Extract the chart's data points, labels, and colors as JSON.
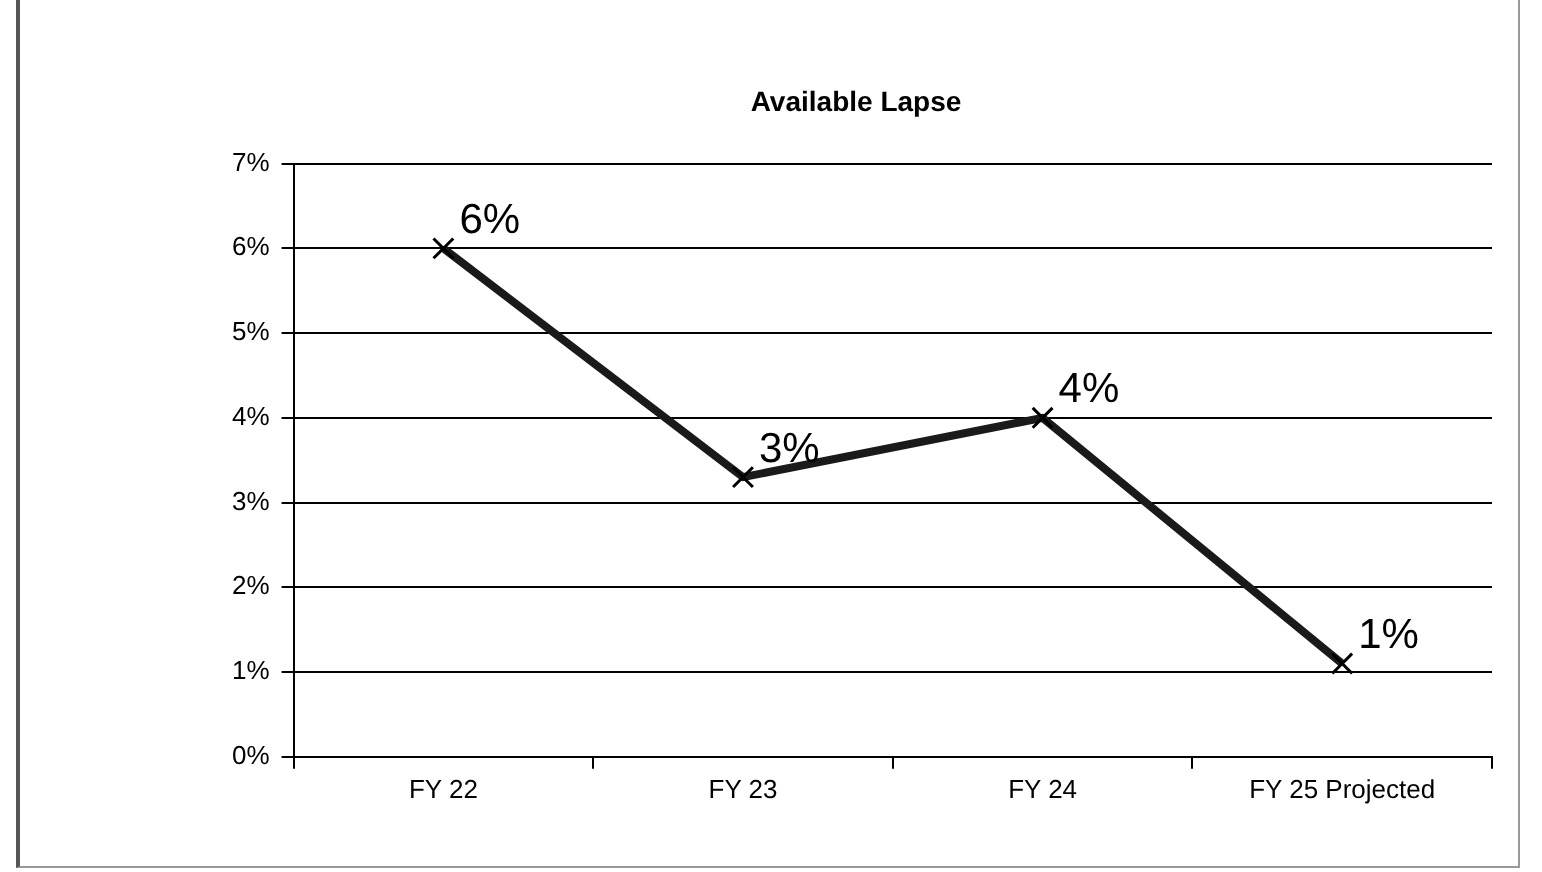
{
  "chart_data": {
    "type": "line",
    "title": "Available Lapse",
    "categories": [
      "FY 22",
      "FY 23",
      "FY 24",
      "FY 25 Projected"
    ],
    "series": [
      {
        "color": "#1a1a1a",
        "values": [
          6.0,
          3.3,
          4.0,
          1.1
        ],
        "value_labels": [
          "6%",
          "3%",
          "4%",
          "1%"
        ]
      }
    ],
    "ylim": [
      0,
      7
    ],
    "yticks": [
      {
        "value": 0,
        "label": "0%"
      },
      {
        "value": 1,
        "label": "1%"
      },
      {
        "value": 2,
        "label": "2%"
      },
      {
        "value": 3,
        "label": "3%"
      },
      {
        "value": 4,
        "label": "4%"
      },
      {
        "value": 5,
        "label": "5%"
      },
      {
        "value": 6,
        "label": "6%"
      },
      {
        "value": 7,
        "label": "7%"
      }
    ],
    "grid": "y",
    "legend": false,
    "marker": "cross",
    "line_style": "solid"
  }
}
